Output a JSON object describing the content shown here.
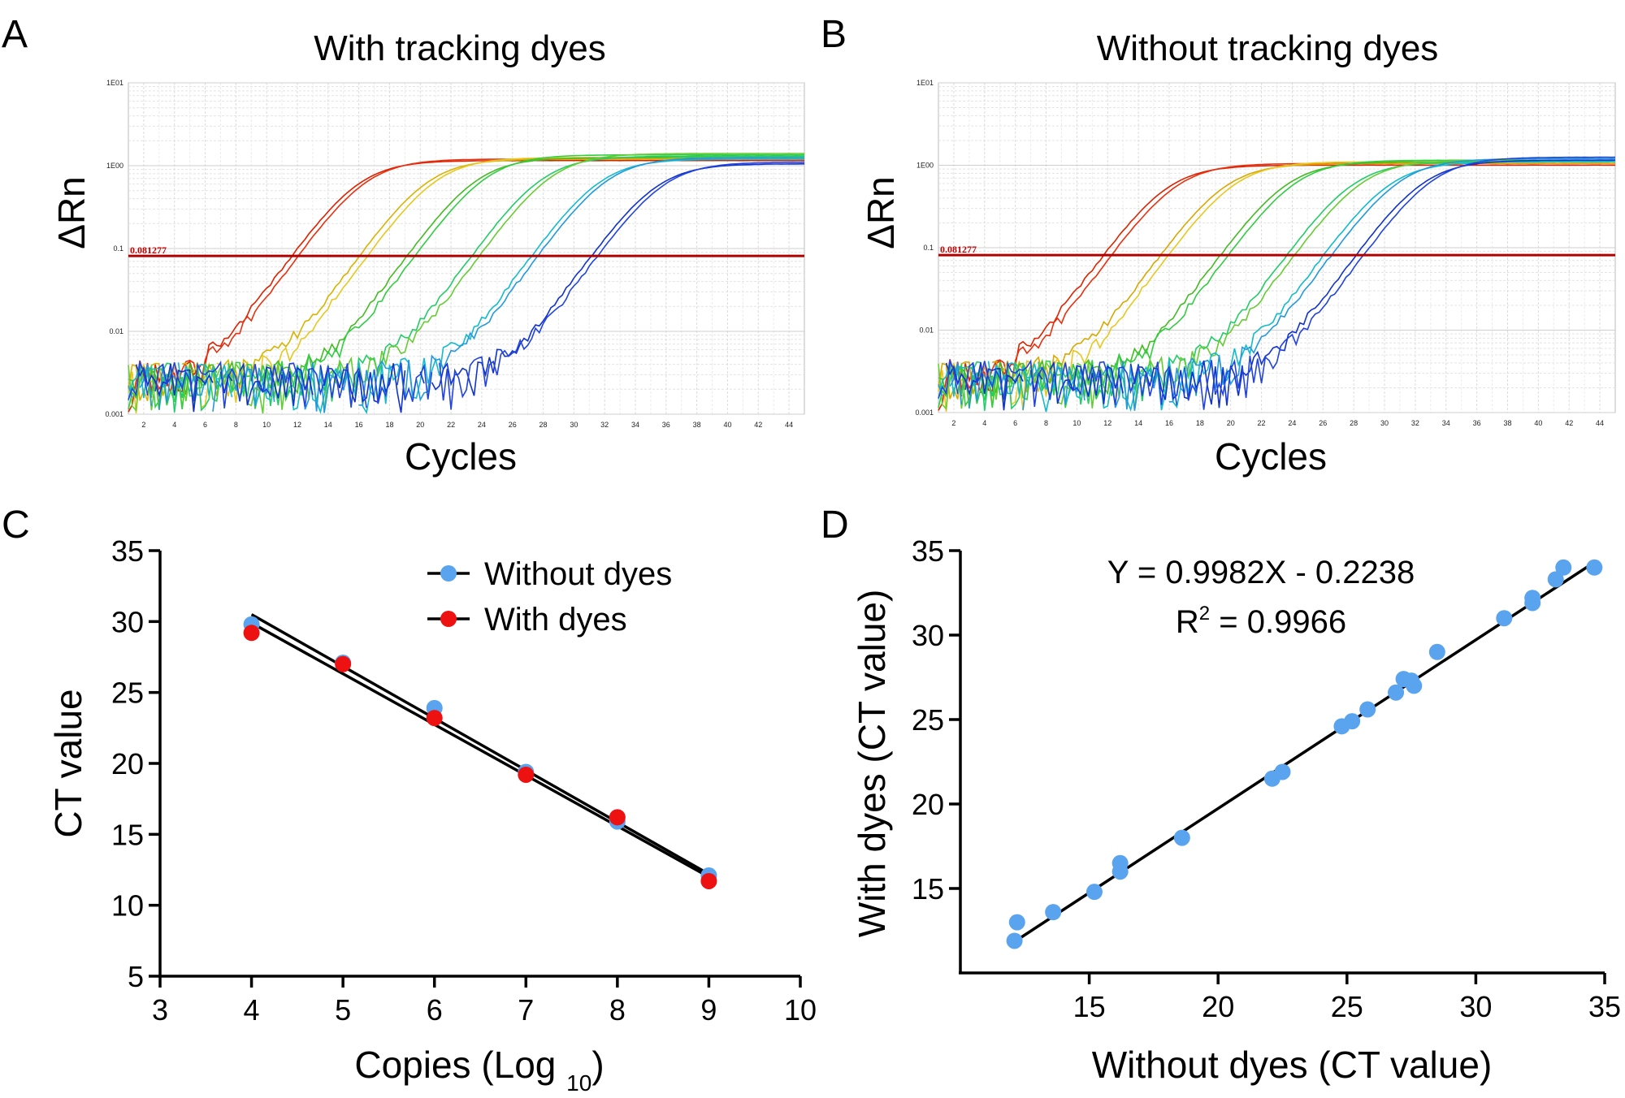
{
  "panels": {
    "A": {
      "letter": "A",
      "title": "With tracking dyes"
    },
    "B": {
      "letter": "B",
      "title": "Without tracking dyes"
    },
    "C": {
      "letter": "C"
    },
    "D": {
      "letter": "D"
    }
  },
  "chart_data": [
    {
      "panel": "A",
      "type": "line",
      "title": "With tracking dyes",
      "xlabel": "Cycles",
      "ylabel": "ΔRn",
      "xlim": [
        1,
        45
      ],
      "ylim": [
        0.001,
        10
      ],
      "yscale": "log",
      "xticks": [
        2,
        4,
        6,
        8,
        10,
        12,
        14,
        16,
        18,
        20,
        22,
        24,
        26,
        28,
        30,
        32,
        34,
        36,
        38,
        40,
        42,
        44
      ],
      "yticks": [
        {
          "value": 0.001,
          "label": "0.001"
        },
        {
          "value": 0.01,
          "label": "0.01"
        },
        {
          "value": 0.1,
          "label": "0.1"
        },
        {
          "value": 1,
          "label": "1E00"
        },
        {
          "value": 10,
          "label": "1E01"
        }
      ],
      "threshold": {
        "value": 0.081277,
        "label": "0.081277",
        "color": "#b00000"
      },
      "grid": true,
      "series": [
        {
          "color": "#dd2200",
          "ct": 11.7,
          "plateau": 1.15
        },
        {
          "color": "#e83010",
          "ct": 12.1,
          "plateau": 1.2
        },
        {
          "color": "#d8b400",
          "ct": 16.1,
          "plateau": 1.2
        },
        {
          "color": "#e6c820",
          "ct": 16.6,
          "plateau": 1.25
        },
        {
          "color": "#44bb22",
          "ct": 19.2,
          "plateau": 1.25
        },
        {
          "color": "#33cc44",
          "ct": 19.7,
          "plateau": 1.35
        },
        {
          "color": "#22cc66",
          "ct": 23.4,
          "plateau": 1.3
        },
        {
          "color": "#66cc33",
          "ct": 23.9,
          "plateau": 1.4
        },
        {
          "color": "#11bbcc",
          "ct": 27.3,
          "plateau": 1.2
        },
        {
          "color": "#2299dd",
          "ct": 27.7,
          "plateau": 1.25
        },
        {
          "color": "#1133cc",
          "ct": 31.2,
          "plateau": 1.05
        },
        {
          "color": "#2244dd",
          "ct": 31.6,
          "plateau": 1.1
        }
      ]
    },
    {
      "panel": "B",
      "type": "line",
      "title": "Without tracking dyes",
      "xlabel": "Cycles",
      "ylabel": "ΔRn",
      "xlim": [
        1,
        45
      ],
      "ylim": [
        0.001,
        10
      ],
      "yscale": "log",
      "xticks": [
        2,
        4,
        6,
        8,
        10,
        12,
        14,
        16,
        18,
        20,
        22,
        24,
        26,
        28,
        30,
        32,
        34,
        36,
        38,
        40,
        42,
        44
      ],
      "yticks": [
        {
          "value": 0.001,
          "label": "0.001"
        },
        {
          "value": 0.01,
          "label": "0.01"
        },
        {
          "value": 0.1,
          "label": "0.1"
        },
        {
          "value": 1,
          "label": "1E00"
        },
        {
          "value": 10,
          "label": "1E01"
        }
      ],
      "threshold": {
        "value": 0.081277,
        "label": "0.081277",
        "color": "#b00000"
      },
      "grid": true,
      "series": [
        {
          "color": "#dd2200",
          "ct": 11.8,
          "plateau": 1.0
        },
        {
          "color": "#e83010",
          "ct": 12.3,
          "plateau": 1.05
        },
        {
          "color": "#d8a800",
          "ct": 15.5,
          "plateau": 1.05
        },
        {
          "color": "#e6c820",
          "ct": 16.0,
          "plateau": 1.1
        },
        {
          "color": "#44bb22",
          "ct": 19.4,
          "plateau": 1.1
        },
        {
          "color": "#33cc44",
          "ct": 19.9,
          "plateau": 1.15
        },
        {
          "color": "#22cc66",
          "ct": 23.7,
          "plateau": 1.1
        },
        {
          "color": "#66cc33",
          "ct": 24.2,
          "plateau": 1.15
        },
        {
          "color": "#11bbcc",
          "ct": 26.1,
          "plateau": 1.1
        },
        {
          "color": "#2299dd",
          "ct": 26.6,
          "plateau": 1.2
        },
        {
          "color": "#1133cc",
          "ct": 28.2,
          "plateau": 1.15
        },
        {
          "color": "#2244dd",
          "ct": 28.7,
          "plateau": 1.25
        }
      ]
    },
    {
      "panel": "C",
      "type": "scatter",
      "xlabel": "Copies (Log",
      "xlabel_sub": "10",
      "xlabel_close": ")",
      "ylabel": "CT value",
      "xlim": [
        3,
        10
      ],
      "ylim": [
        5,
        35
      ],
      "xticks": [
        3,
        4,
        5,
        6,
        7,
        8,
        9,
        10
      ],
      "yticks": [
        5,
        10,
        15,
        20,
        25,
        30,
        35
      ],
      "legend": "top-right",
      "series": [
        {
          "name": "Without dyes",
          "color": "#5aa3ee",
          "x": [
            4,
            5,
            6,
            7,
            8,
            9
          ],
          "y": [
            29.8,
            27.1,
            23.9,
            19.4,
            15.9,
            12.1
          ],
          "fit": {
            "x": [
              4,
              9
            ],
            "y": [
              30.5,
              12.2
            ]
          }
        },
        {
          "name": "With dyes",
          "color": "#ee1111",
          "x": [
            4,
            5,
            6,
            7,
            8,
            9
          ],
          "y": [
            29.2,
            27.0,
            23.2,
            19.2,
            16.2,
            11.7
          ],
          "fit": {
            "x": [
              4,
              9
            ],
            "y": [
              29.9,
              12.0
            ]
          }
        }
      ]
    },
    {
      "panel": "D",
      "type": "scatter",
      "xlabel": "Without dyes (CT value)",
      "ylabel": "With dyes  (CT value)",
      "xlim": [
        10,
        35
      ],
      "ylim": [
        10,
        35
      ],
      "xticks": [
        15,
        20,
        25,
        30,
        35
      ],
      "yticks": [
        15,
        20,
        25,
        30,
        35
      ],
      "equation": "Y = 0.9982X - 0.2238",
      "r2_prefix": "R",
      "r2_sup": "2",
      "r2_suffix": " = 0.9966",
      "series": [
        {
          "color": "#5aa3ee",
          "x": [
            12.1,
            12.2,
            13.6,
            15.2,
            16.2,
            16.2,
            18.6,
            22.1,
            22.5,
            24.8,
            25.2,
            25.8,
            26.9,
            27.2,
            27.6,
            27.5,
            28.5,
            31.1,
            32.2,
            32.2,
            33.1,
            33.4,
            34.6
          ],
          "y": [
            11.9,
            13.0,
            13.6,
            14.8,
            16.0,
            16.5,
            18.0,
            21.5,
            21.9,
            24.6,
            24.9,
            25.6,
            26.6,
            27.4,
            27.0,
            27.3,
            29.0,
            31.0,
            31.9,
            32.2,
            33.3,
            34.0,
            34.0
          ],
          "fit": {
            "x": [
              12.1,
              34.6
            ],
            "y": [
              11.85,
              34.31
            ]
          }
        }
      ]
    }
  ]
}
